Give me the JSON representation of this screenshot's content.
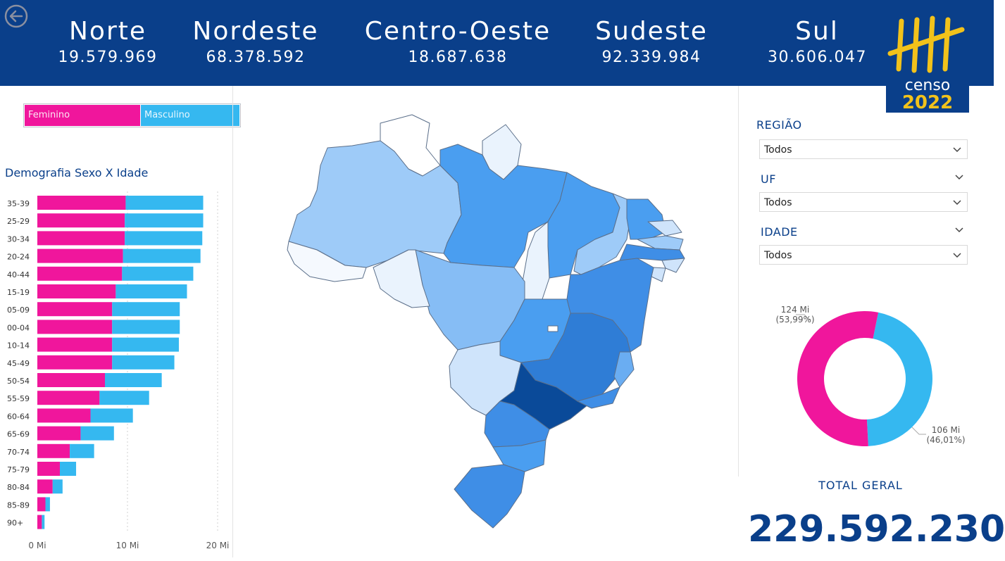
{
  "header": {
    "regions": [
      {
        "name": "Norte",
        "value": "19.579.969"
      },
      {
        "name": "Nordeste",
        "value": "68.378.592"
      },
      {
        "name": "Centro-Oeste",
        "value": "18.687.638"
      },
      {
        "name": "Sudeste",
        "value": "92.339.984"
      },
      {
        "name": "Sul",
        "value": "30.606.047"
      }
    ],
    "logo": {
      "line1": "censo",
      "line2": "2022"
    }
  },
  "legend": {
    "female": "Feminino",
    "male": "Masculino"
  },
  "chart_title": "Demografia Sexo X Idade",
  "colors": {
    "female": "#f0169c",
    "male": "#35b8f0",
    "header": "#0a3f8a",
    "accent": "#0a3f8a",
    "logo_gold": "#f2c21b"
  },
  "chart_data": {
    "type": "bar",
    "orientation": "horizontal",
    "stacked": true,
    "categories": [
      "35-39",
      "25-29",
      "30-34",
      "20-24",
      "40-44",
      "15-19",
      "05-09",
      "00-04",
      "10-14",
      "45-49",
      "50-54",
      "55-59",
      "60-64",
      "65-69",
      "70-74",
      "75-79",
      "80-84",
      "85-89",
      "90+"
    ],
    "series": [
      {
        "name": "Feminino",
        "values": [
          9.8,
          9.7,
          9.7,
          9.5,
          9.4,
          8.7,
          8.3,
          8.3,
          8.3,
          8.3,
          7.5,
          6.9,
          5.9,
          4.8,
          3.6,
          2.5,
          1.7,
          0.9,
          0.5
        ]
      },
      {
        "name": "Masculino",
        "values": [
          8.6,
          8.7,
          8.6,
          8.6,
          7.9,
          7.9,
          7.5,
          7.5,
          7.4,
          6.9,
          6.3,
          5.5,
          4.7,
          3.7,
          2.7,
          1.8,
          1.1,
          0.5,
          0.3
        ]
      }
    ],
    "xticks": [
      "0 Mi",
      "10 Mi",
      "20 Mi"
    ],
    "xlim": [
      0,
      20
    ]
  },
  "filters": {
    "regiao": {
      "label": "REGIÃO",
      "value": "Todos"
    },
    "uf": {
      "label": "UF",
      "value": "Todos"
    },
    "idade": {
      "label": "IDADE",
      "value": "Todos"
    }
  },
  "donut": {
    "female_label": "124 Mi",
    "female_pct": "(53,99%)",
    "male_label": "106 Mi",
    "male_pct": "(46,01%)",
    "female_share": 0.5399,
    "male_share": 0.4601
  },
  "total": {
    "label": "TOTAL GERAL",
    "value": "229.592.230"
  },
  "map": {
    "highlight_state": "SP"
  }
}
